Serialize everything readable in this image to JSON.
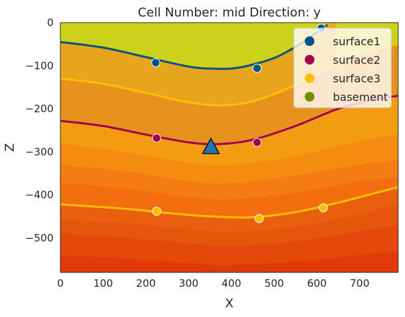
{
  "chart_data": {
    "type": "area",
    "title": "Cell Number: mid Direction: y",
    "xlabel": "X",
    "ylabel": "Z",
    "xlim": [
      0,
      790
    ],
    "ylim": [
      -580,
      0
    ],
    "xticks": [
      0,
      100,
      200,
      300,
      400,
      500,
      600,
      700
    ],
    "yticks": [
      0,
      -100,
      -200,
      -300,
      -400,
      -500
    ],
    "xtick_labels": [
      "0",
      "100",
      "200",
      "300",
      "400",
      "500",
      "600",
      "700"
    ],
    "ytick_labels": [
      "0",
      "−100",
      "−200",
      "−300",
      "−400",
      "−500"
    ],
    "grid": false,
    "legend_position": "top-right",
    "legend": [
      {
        "label": "surface1",
        "color": "#015482"
      },
      {
        "label": "surface2",
        "color": "#9f0052"
      },
      {
        "label": "surface3",
        "color": "#ffbe00"
      },
      {
        "label": "basement",
        "color": "#728f02"
      }
    ],
    "bands": [
      {
        "color": "#cdd11c",
        "top": [
          [
            0,
            0
          ],
          [
            790,
            0
          ]
        ]
      },
      {
        "color": "#e6a51c",
        "top": [
          [
            0,
            -45
          ],
          [
            100,
            -58
          ],
          [
            200,
            -80
          ],
          [
            300,
            -102
          ],
          [
            360,
            -107
          ],
          [
            420,
            -104
          ],
          [
            500,
            -82
          ],
          [
            560,
            -50
          ],
          [
            600,
            -22
          ],
          [
            640,
            0
          ]
        ]
      },
      {
        "color": "#e8921e",
        "top": [
          [
            0,
            -130
          ],
          [
            100,
            -142
          ],
          [
            200,
            -163
          ],
          [
            300,
            -185
          ],
          [
            380,
            -192
          ],
          [
            460,
            -180
          ],
          [
            560,
            -140
          ],
          [
            660,
            -90
          ],
          [
            740,
            -62
          ],
          [
            790,
            -50
          ]
        ]
      },
      {
        "color": "#f39c12",
        "top": [
          [
            0,
            -228
          ],
          [
            100,
            -240
          ],
          [
            200,
            -260
          ],
          [
            300,
            -278
          ],
          [
            370,
            -282
          ],
          [
            450,
            -272
          ],
          [
            550,
            -240
          ],
          [
            650,
            -200
          ],
          [
            740,
            -178
          ],
          [
            790,
            -170
          ]
        ]
      },
      {
        "color": "#f58c0f",
        "top": [
          [
            0,
            -280
          ],
          [
            150,
            -300
          ],
          [
            300,
            -325
          ],
          [
            400,
            -330
          ],
          [
            550,
            -310
          ],
          [
            700,
            -275
          ],
          [
            790,
            -260
          ]
        ]
      },
      {
        "color": "#f47c12",
        "top": [
          [
            0,
            -330
          ],
          [
            150,
            -345
          ],
          [
            300,
            -368
          ],
          [
            400,
            -372
          ],
          [
            550,
            -355
          ],
          [
            700,
            -330
          ],
          [
            790,
            -320
          ]
        ]
      },
      {
        "color": "#f36e0f",
        "top": [
          [
            0,
            -372
          ],
          [
            150,
            -385
          ],
          [
            300,
            -405
          ],
          [
            400,
            -410
          ],
          [
            550,
            -395
          ],
          [
            700,
            -368
          ],
          [
            790,
            -360
          ]
        ]
      },
      {
        "color": "#e85f0d",
        "top": [
          [
            0,
            -422
          ],
          [
            150,
            -432
          ],
          [
            250,
            -442
          ],
          [
            350,
            -450
          ],
          [
            450,
            -452
          ],
          [
            550,
            -440
          ],
          [
            650,
            -418
          ],
          [
            720,
            -400
          ],
          [
            790,
            -382
          ]
        ]
      },
      {
        "color": "#e5550c",
        "top": [
          [
            0,
            -458
          ],
          [
            150,
            -466
          ],
          [
            300,
            -480
          ],
          [
            400,
            -486
          ],
          [
            550,
            -474
          ],
          [
            700,
            -445
          ],
          [
            790,
            -420
          ]
        ]
      },
      {
        "color": "#e4480a",
        "top": [
          [
            0,
            -490
          ],
          [
            150,
            -500
          ],
          [
            300,
            -512
          ],
          [
            400,
            -520
          ],
          [
            550,
            -508
          ],
          [
            700,
            -485
          ],
          [
            790,
            -470
          ]
        ]
      },
      {
        "color": "#e33a09",
        "top": [
          [
            0,
            -540
          ],
          [
            150,
            -548
          ],
          [
            300,
            -558
          ],
          [
            400,
            -562
          ],
          [
            550,
            -555
          ],
          [
            700,
            -540
          ],
          [
            790,
            -532
          ]
        ]
      }
    ],
    "contacts": [
      {
        "name": "surface1",
        "color": "#015482",
        "points": [
          [
            0,
            -45
          ],
          [
            100,
            -58
          ],
          [
            200,
            -80
          ],
          [
            300,
            -102
          ],
          [
            360,
            -107
          ],
          [
            420,
            -104
          ],
          [
            500,
            -82
          ],
          [
            560,
            -50
          ],
          [
            600,
            -22
          ],
          [
            625,
            -5
          ]
        ]
      },
      {
        "name": "surface3",
        "color": "#ffbe00",
        "points": [
          [
            0,
            -130
          ],
          [
            100,
            -142
          ],
          [
            200,
            -163
          ],
          [
            300,
            -185
          ],
          [
            380,
            -192
          ],
          [
            460,
            -180
          ],
          [
            560,
            -140
          ],
          [
            660,
            -90
          ],
          [
            740,
            -62
          ],
          [
            790,
            -50
          ]
        ]
      },
      {
        "name": "surface2",
        "color": "#9f0052",
        "points": [
          [
            0,
            -228
          ],
          [
            100,
            -240
          ],
          [
            200,
            -260
          ],
          [
            300,
            -278
          ],
          [
            370,
            -282
          ],
          [
            450,
            -272
          ],
          [
            550,
            -240
          ],
          [
            650,
            -200
          ],
          [
            740,
            -178
          ],
          [
            790,
            -170
          ]
        ]
      },
      {
        "name": "surface3",
        "color": "#ffbe00",
        "points": [
          [
            0,
            -422
          ],
          [
            150,
            -432
          ],
          [
            250,
            -442
          ],
          [
            350,
            -450
          ],
          [
            450,
            -452
          ],
          [
            550,
            -440
          ],
          [
            650,
            -418
          ],
          [
            720,
            -400
          ],
          [
            790,
            -382
          ]
        ]
      }
    ],
    "points": [
      {
        "series": "surface1",
        "color": "#015482",
        "x": 223,
        "y": -93
      },
      {
        "series": "surface1",
        "color": "#015482",
        "x": 460,
        "y": -106
      },
      {
        "series": "surface1",
        "color": "#015482",
        "x": 610,
        "y": -13
      },
      {
        "series": "surface2",
        "color": "#9f0052",
        "x": 225,
        "y": -268
      },
      {
        "series": "surface2",
        "color": "#9f0052",
        "x": 460,
        "y": -278
      },
      {
        "series": "surface3",
        "color": "#ffbe00",
        "x": 225,
        "y": -438
      },
      {
        "series": "surface3",
        "color": "#ffbe00",
        "x": 465,
        "y": -455
      },
      {
        "series": "surface3",
        "color": "#ffbe00",
        "x": 615,
        "y": -430
      }
    ],
    "orientation": {
      "x": 352,
      "y": -288,
      "color": "#1f77b4"
    }
  }
}
